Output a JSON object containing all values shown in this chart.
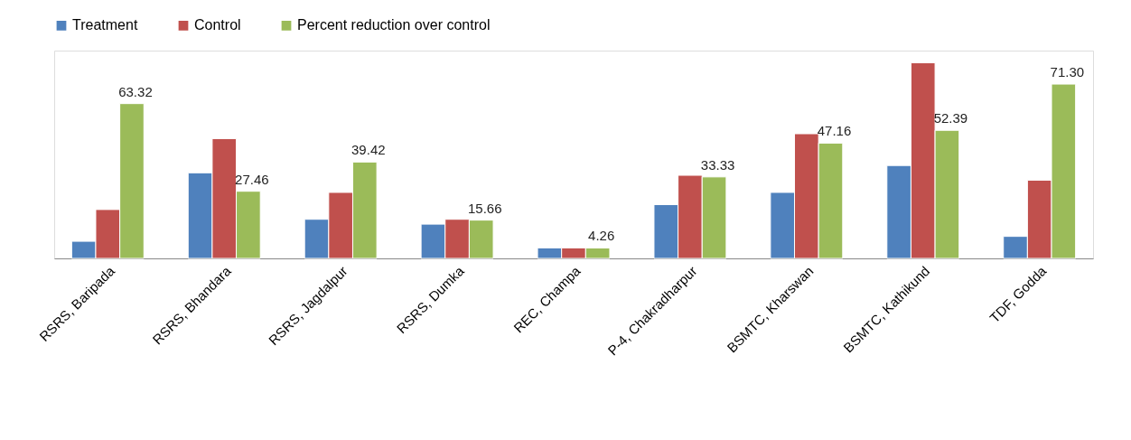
{
  "chart_data": {
    "type": "bar",
    "legend": "top",
    "grid": false,
    "ylim": [
      0,
      85
    ],
    "tick_labels": "x",
    "categories": [
      "RSRS, Baripada",
      "RSRS, Bhandara",
      "RSRS, Jagdalpur",
      "RSRS, Dumka",
      "REC, Champa",
      "P-4, Chakradharpur",
      "BSMTC, Kharswan",
      "BSMTC, Kathikund",
      "TDF, Godda"
    ],
    "series": [
      {
        "name": "Treatment",
        "color": "#4f81bd",
        "values": [
          7,
          35,
          16,
          14,
          4.3,
          22,
          27,
          38,
          9
        ]
      },
      {
        "name": "Control",
        "color": "#c0504d",
        "values": [
          20,
          49,
          27,
          16,
          4.3,
          34,
          51,
          80,
          32
        ]
      },
      {
        "name": "Percent reduction over control",
        "color": "#9bbb59",
        "values": [
          63.32,
          27.46,
          39.42,
          15.66,
          4.26,
          33.33,
          47.16,
          52.39,
          71.3
        ],
        "value_labels": [
          "63.32",
          "27.46",
          "39.42",
          "15.66",
          "4.26",
          "33.33",
          "47.16",
          "52.39",
          "71.30"
        ]
      }
    ]
  }
}
